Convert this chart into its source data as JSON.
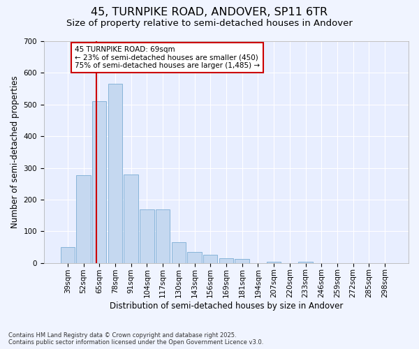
{
  "title_line1": "45, TURNPIKE ROAD, ANDOVER, SP11 6TR",
  "title_line2": "Size of property relative to semi-detached houses in Andover",
  "xlabel": "Distribution of semi-detached houses by size in Andover",
  "ylabel": "Number of semi-detached properties",
  "categories": [
    "39sqm",
    "52sqm",
    "65sqm",
    "78sqm",
    "91sqm",
    "104sqm",
    "117sqm",
    "130sqm",
    "143sqm",
    "156sqm",
    "169sqm",
    "181sqm",
    "194sqm",
    "207sqm",
    "220sqm",
    "233sqm",
    "246sqm",
    "259sqm",
    "272sqm",
    "285sqm",
    "298sqm"
  ],
  "values": [
    50,
    278,
    510,
    565,
    280,
    168,
    168,
    65,
    35,
    25,
    15,
    12,
    0,
    4,
    0,
    4,
    0,
    0,
    0,
    0,
    0
  ],
  "bar_color": "#c5d8f0",
  "bar_edge_color": "#7aadd4",
  "redline_color": "#cc0000",
  "annotation_text": "45 TURNPIKE ROAD: 69sqm\n← 23% of semi-detached houses are smaller (450)\n75% of semi-detached houses are larger (1,485) →",
  "annotation_box_facecolor": "#ffffff",
  "annotation_box_edgecolor": "#cc0000",
  "background_color": "#f0f4ff",
  "plot_bg_color": "#e8eeff",
  "ylim": [
    0,
    700
  ],
  "yticks": [
    0,
    100,
    200,
    300,
    400,
    500,
    600,
    700
  ],
  "footnote": "Contains HM Land Registry data © Crown copyright and database right 2025.\nContains public sector information licensed under the Open Government Licence v3.0.",
  "title_fontsize": 11.5,
  "subtitle_fontsize": 9.5,
  "label_fontsize": 8.5,
  "tick_fontsize": 7.5,
  "annot_fontsize": 7.5
}
